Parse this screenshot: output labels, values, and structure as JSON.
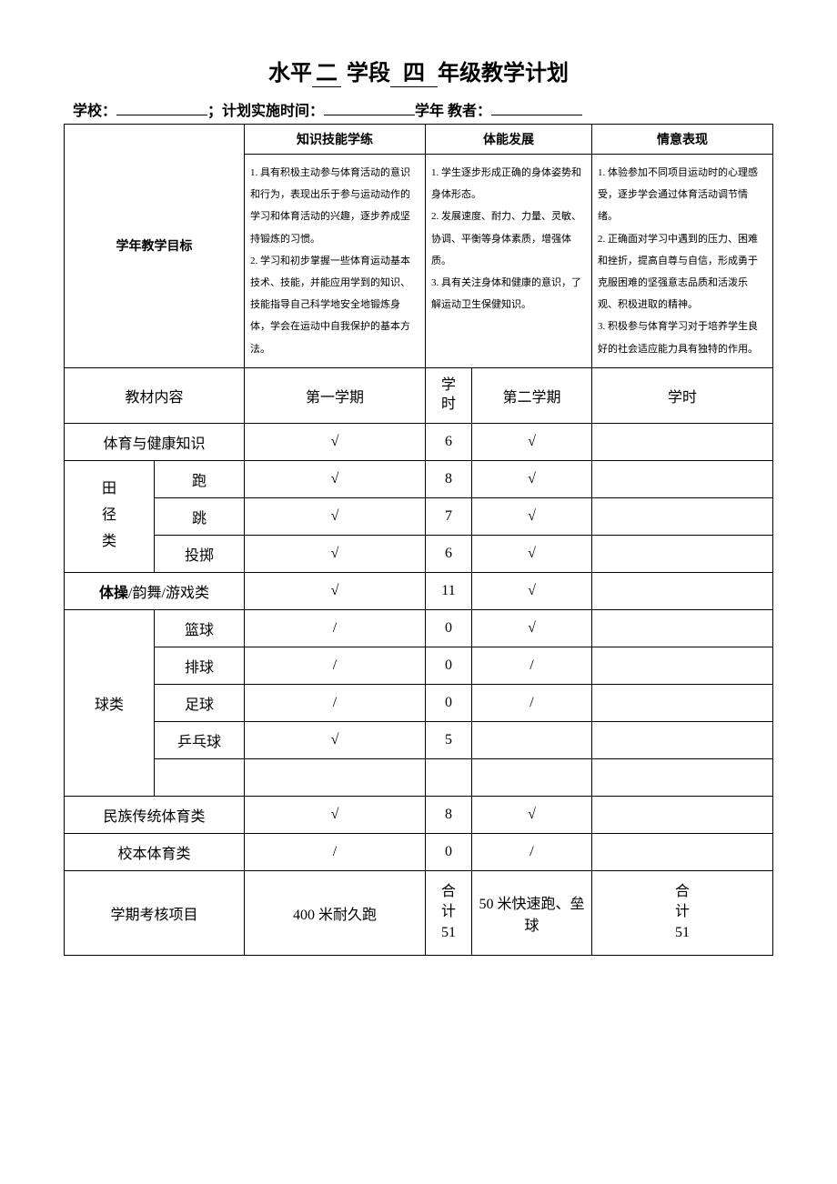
{
  "title": {
    "prefix": "水平",
    "level": "二",
    "mid": "学段",
    "grade": "四",
    "suffix": "年级教学计划"
  },
  "subline": {
    "school_label": "学校：",
    "plan_label": "；计划实施时间：",
    "year_label": "学年  教者：",
    "school_value": "",
    "time_value": "",
    "teacher_value": ""
  },
  "goals": {
    "row_label": "学年教学目标",
    "headers": [
      "知识技能学练",
      "体能发展",
      "情意表现"
    ],
    "cells": [
      "1. 具有积极主动参与体育活动的意识和行为，表现出乐于参与运动动作的学习和体育活动的兴趣，逐步养成坚持锻炼的习惯。\n2. 学习和初步掌握一些体育运动基本技术、技能，并能应用学到的知识、技能指导自己科学地安全地锻炼身体，学会在运动中自我保护的基本方法。",
      "1. 学生逐步形成正确的身体姿势和身体形态。\n2. 发展速度、耐力、力量、灵敏、协调、平衡等身体素质，增强体质。\n3. 具有关注身体和健康的意识，了解运动卫生保健知识。",
      "1. 体验参加不同项目运动时的心理感受，逐步学会通过体育活动调节情绪。\n2. 正确面对学习中遇到的压力、困难和挫折，提高自尊与自信，形成勇于克服困难的坚强意志品质和活泼乐观、积极进取的精神。\n3. 积极参与体育学习对于培养学生良好的社会适应能力具有独特的作用。"
    ]
  },
  "content_header": {
    "c0": "教材内容",
    "c1": "第一学期",
    "c2": "学\n时",
    "c3": "第二学期",
    "c4": "学时"
  },
  "rows": [
    {
      "a": "体育与健康知识",
      "b": "",
      "s1": "√",
      "h1": "6",
      "s2": "√",
      "h2": ""
    },
    {
      "a": "田\n径\n类",
      "b": "跑",
      "s1": "√",
      "h1": "8",
      "s2": "√",
      "h2": ""
    },
    {
      "a": "",
      "b": "跳",
      "s1": "√",
      "h1": "7",
      "s2": "√",
      "h2": ""
    },
    {
      "a": "",
      "b": "投掷",
      "s1": "√",
      "h1": "6",
      "s2": "√",
      "h2": ""
    },
    {
      "a": "体操/韵舞/游戏类",
      "b": "",
      "s1": "√",
      "h1": "11",
      "s2": "√",
      "h2": ""
    },
    {
      "a": "球类",
      "b": "篮球",
      "s1": "/",
      "h1": "0",
      "s2": "√",
      "h2": ""
    },
    {
      "a": "",
      "b": "排球",
      "s1": "/",
      "h1": "0",
      "s2": "/",
      "h2": ""
    },
    {
      "a": "",
      "b": "足球",
      "s1": "/",
      "h1": "0",
      "s2": "/",
      "h2": ""
    },
    {
      "a": "",
      "b": "乒乓球",
      "s1": "√",
      "h1": "5",
      "s2": "",
      "h2": ""
    },
    {
      "a": "",
      "b": "",
      "s1": "",
      "h1": "",
      "s2": "",
      "h2": ""
    },
    {
      "a": "民族传统体育类",
      "b": "",
      "s1": "√",
      "h1": "8",
      "s2": "√",
      "h2": ""
    },
    {
      "a": "校本体育类",
      "b": "",
      "s1": "/",
      "h1": "0",
      "s2": "/",
      "h2": ""
    }
  ],
  "exam": {
    "label": "学期考核项目",
    "s1": "400 米耐久跑",
    "h1": "合\n计\n51",
    "s2": "50 米快速跑、垒球",
    "h2": "合\n计\n51"
  },
  "tiCaoBold": "体操"
}
